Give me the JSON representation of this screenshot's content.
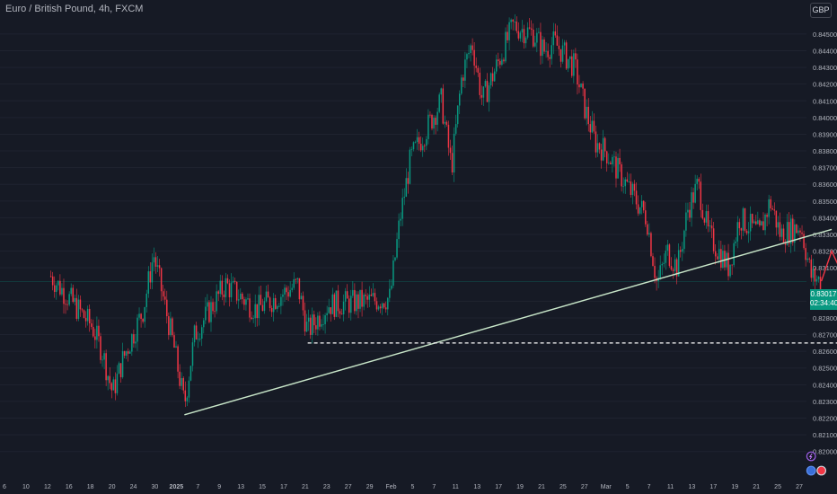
{
  "header": {
    "symbol_title": "Euro / British Pound, 4h, FXCM"
  },
  "currency_button": {
    "label": "GBP"
  },
  "current_price": {
    "value": "0.83017",
    "countdown": "02:34:40"
  },
  "colors": {
    "background": "#161a25",
    "up": "#089981",
    "down": "#f23645",
    "trendline": "#c8e6c9",
    "support": "#ffffff",
    "arrow": "#f23645",
    "axis_text": "#b2b5be",
    "grid": "#1f2330"
  },
  "chart_data": {
    "type": "candlestick",
    "instrument": "EUR/GBP",
    "timeframe": "4h",
    "y_axis": {
      "min": 0.8195,
      "max": 0.8465,
      "ticks": [
        "0.84500",
        "0.84400",
        "0.84300",
        "0.84200",
        "0.84100",
        "0.84000",
        "0.83900",
        "0.83800",
        "0.83700",
        "0.83600",
        "0.83500",
        "0.83400",
        "0.83300",
        "0.83200",
        "0.83100",
        "0.82900",
        "0.82800",
        "0.82700",
        "0.82600",
        "0.82500",
        "0.82400",
        "0.82300",
        "0.82200",
        "0.82100",
        "0.82000"
      ]
    },
    "x_axis": {
      "ticks": [
        "6",
        "10",
        "12",
        "16",
        "18",
        "20",
        "24",
        "30",
        "2025",
        "7",
        "9",
        "13",
        "15",
        "17",
        "21",
        "23",
        "27",
        "29",
        "Feb",
        "5",
        "7",
        "11",
        "13",
        "17",
        "19",
        "21",
        "25",
        "27",
        "Mar",
        "5",
        "7",
        "11",
        "13",
        "17",
        "19",
        "21",
        "25",
        "27"
      ]
    },
    "price_path": [
      {
        "x": "Dec 6",
        "y": 0.8305
      },
      {
        "x": "Dec 8",
        "y": 0.829
      },
      {
        "x": "Dec 10",
        "y": 0.8275
      },
      {
        "x": "Dec 11",
        "y": 0.826
      },
      {
        "x": "Dec 12",
        "y": 0.8235
      },
      {
        "x": "Dec 13",
        "y": 0.8255
      },
      {
        "x": "Dec 15",
        "y": 0.8285
      },
      {
        "x": "Dec 16",
        "y": 0.8318
      },
      {
        "x": "Dec 17",
        "y": 0.829
      },
      {
        "x": "Dec 18",
        "y": 0.8262
      },
      {
        "x": "Dec 19",
        "y": 0.8228
      },
      {
        "x": "Dec 20",
        "y": 0.827
      },
      {
        "x": "Dec 23",
        "y": 0.83
      },
      {
        "x": "Dec 26",
        "y": 0.8285
      },
      {
        "x": "Dec 30",
        "y": 0.83
      },
      {
        "x": "Dec 31",
        "y": 0.8272
      },
      {
        "x": "Jan 2",
        "y": 0.8288
      },
      {
        "x": "Jan 6",
        "y": 0.829
      },
      {
        "x": "Jan 8",
        "y": 0.8292
      },
      {
        "x": "Jan 9",
        "y": 0.834
      },
      {
        "x": "Jan 10",
        "y": 0.8375
      },
      {
        "x": "Jan 13",
        "y": 0.841
      },
      {
        "x": "Jan 14",
        "y": 0.837
      },
      {
        "x": "Jan 15",
        "y": 0.8425
      },
      {
        "x": "Jan 16",
        "y": 0.8445
      },
      {
        "x": "Jan 17",
        "y": 0.841
      },
      {
        "x": "Jan 18",
        "y": 0.8425
      },
      {
        "x": "Jan 20",
        "y": 0.8455
      },
      {
        "x": "Jan 22",
        "y": 0.845
      },
      {
        "x": "Jan 23",
        "y": 0.844
      },
      {
        "x": "Jan 24",
        "y": 0.8445
      },
      {
        "x": "Jan 26",
        "y": 0.843
      },
      {
        "x": "Jan 27",
        "y": 0.8405
      },
      {
        "x": "Jan 28",
        "y": 0.8385
      },
      {
        "x": "Jan 29",
        "y": 0.838
      },
      {
        "x": "Jan 30",
        "y": 0.837
      },
      {
        "x": "Jan 31",
        "y": 0.836
      },
      {
        "x": "Feb 2",
        "y": 0.834
      },
      {
        "x": "Feb 3",
        "y": 0.83
      },
      {
        "x": "Feb 4",
        "y": 0.832
      },
      {
        "x": "Feb 5",
        "y": 0.831
      },
      {
        "x": "Feb 6",
        "y": 0.8345
      },
      {
        "x": "Feb 7",
        "y": 0.836
      },
      {
        "x": "Feb 8",
        "y": 0.833
      },
      {
        "x": "Feb 10",
        "y": 0.831
      },
      {
        "x": "Feb 11",
        "y": 0.834
      },
      {
        "x": "Feb 13",
        "y": 0.833
      },
      {
        "x": "Feb 14",
        "y": 0.835
      },
      {
        "x": "Feb 15",
        "y": 0.833
      },
      {
        "x": "Feb 17",
        "y": 0.8335
      },
      {
        "x": "Feb 18",
        "y": 0.8305
      },
      {
        "x": "Feb 19",
        "y": 0.8302
      }
    ],
    "annotations": [
      {
        "type": "trendline",
        "from": {
          "x": "Dec 19",
          "y": 0.8222
        },
        "to": {
          "x": "Feb 20",
          "y": 0.8333
        }
      },
      {
        "type": "horizontal-dashed",
        "y": 0.8265,
        "from_x": "Dec 31",
        "to_x": "Feb 25"
      },
      {
        "type": "arrow",
        "points": [
          {
            "x": "Feb 19",
            "y": 0.8302
          },
          {
            "x": "Feb 20",
            "y": 0.832
          },
          {
            "x": "Feb 24",
            "y": 0.8267
          }
        ]
      }
    ],
    "event_markers": [
      {
        "x": "Feb 18",
        "row": 1,
        "icon": "lightning"
      },
      {
        "x": "Feb 21",
        "row": 1,
        "icon": "blue"
      },
      {
        "x": "Feb 18",
        "row": 2,
        "icon": "blue"
      },
      {
        "x": "Feb 19",
        "row": 2,
        "icon": "flag"
      },
      {
        "x": "Feb 21",
        "row": 2,
        "icon": "flag"
      },
      {
        "x": "Feb 22",
        "row": 2,
        "icon": "flag"
      },
      {
        "x": "Feb 23",
        "row": 2,
        "icon": "blue"
      },
      {
        "x": "Mar 19",
        "row": 2,
        "icon": "blue"
      },
      {
        "x": "Mar 21",
        "row": 2,
        "icon": "flag"
      }
    ]
  }
}
